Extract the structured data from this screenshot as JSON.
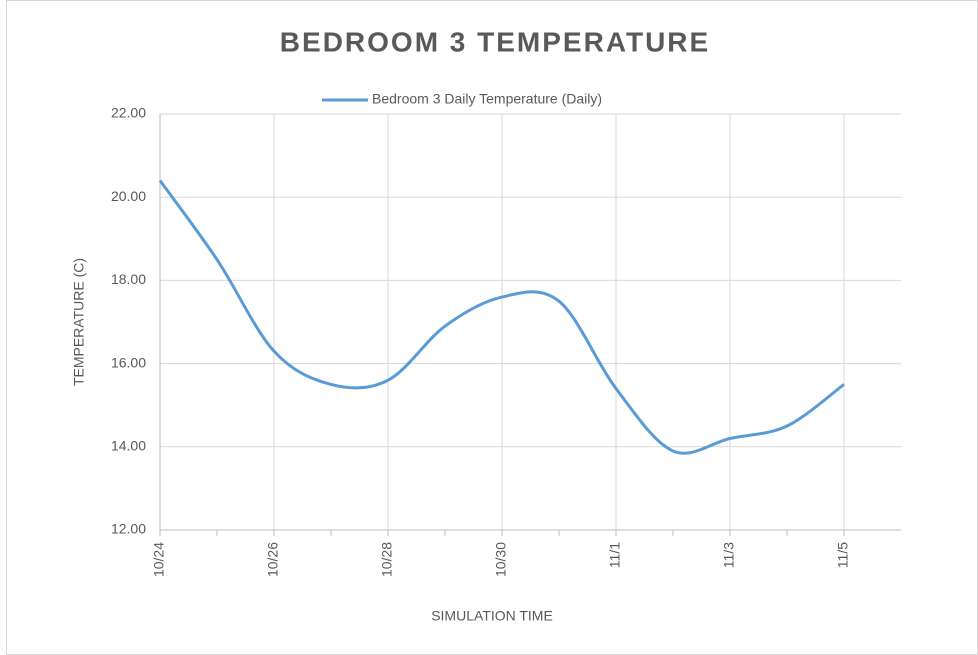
{
  "chart_data": {
    "type": "line",
    "title": "BEDROOM 3 TEMPERATURE",
    "x_label": "SIMULATION TIME",
    "y_label": "TEMPERATURE (C)",
    "categories": [
      "10/24",
      null,
      "10/26",
      null,
      "10/28",
      null,
      "10/30",
      null,
      "11/1",
      null,
      "11/3",
      null,
      "11/5"
    ],
    "series": [
      {
        "name": "Bedroom 3 Daily Temperature (Daily)",
        "color": "#5b9bd5",
        "values": [
          20.4,
          18.5,
          16.3,
          15.5,
          15.6,
          16.9,
          17.6,
          17.5,
          15.4,
          13.9,
          14.2,
          14.5,
          15.5
        ]
      }
    ],
    "ylim": [
      12,
      22
    ],
    "yticks": [
      {
        "value": 12,
        "label": "12.00"
      },
      {
        "value": 14,
        "label": "14.00"
      },
      {
        "value": 16,
        "label": "16.00"
      },
      {
        "value": 18,
        "label": "18.00"
      },
      {
        "value": 20,
        "label": "20.00"
      },
      {
        "value": 22,
        "label": "22.00"
      }
    ],
    "grid": true,
    "smooth": true,
    "legend": "top"
  }
}
